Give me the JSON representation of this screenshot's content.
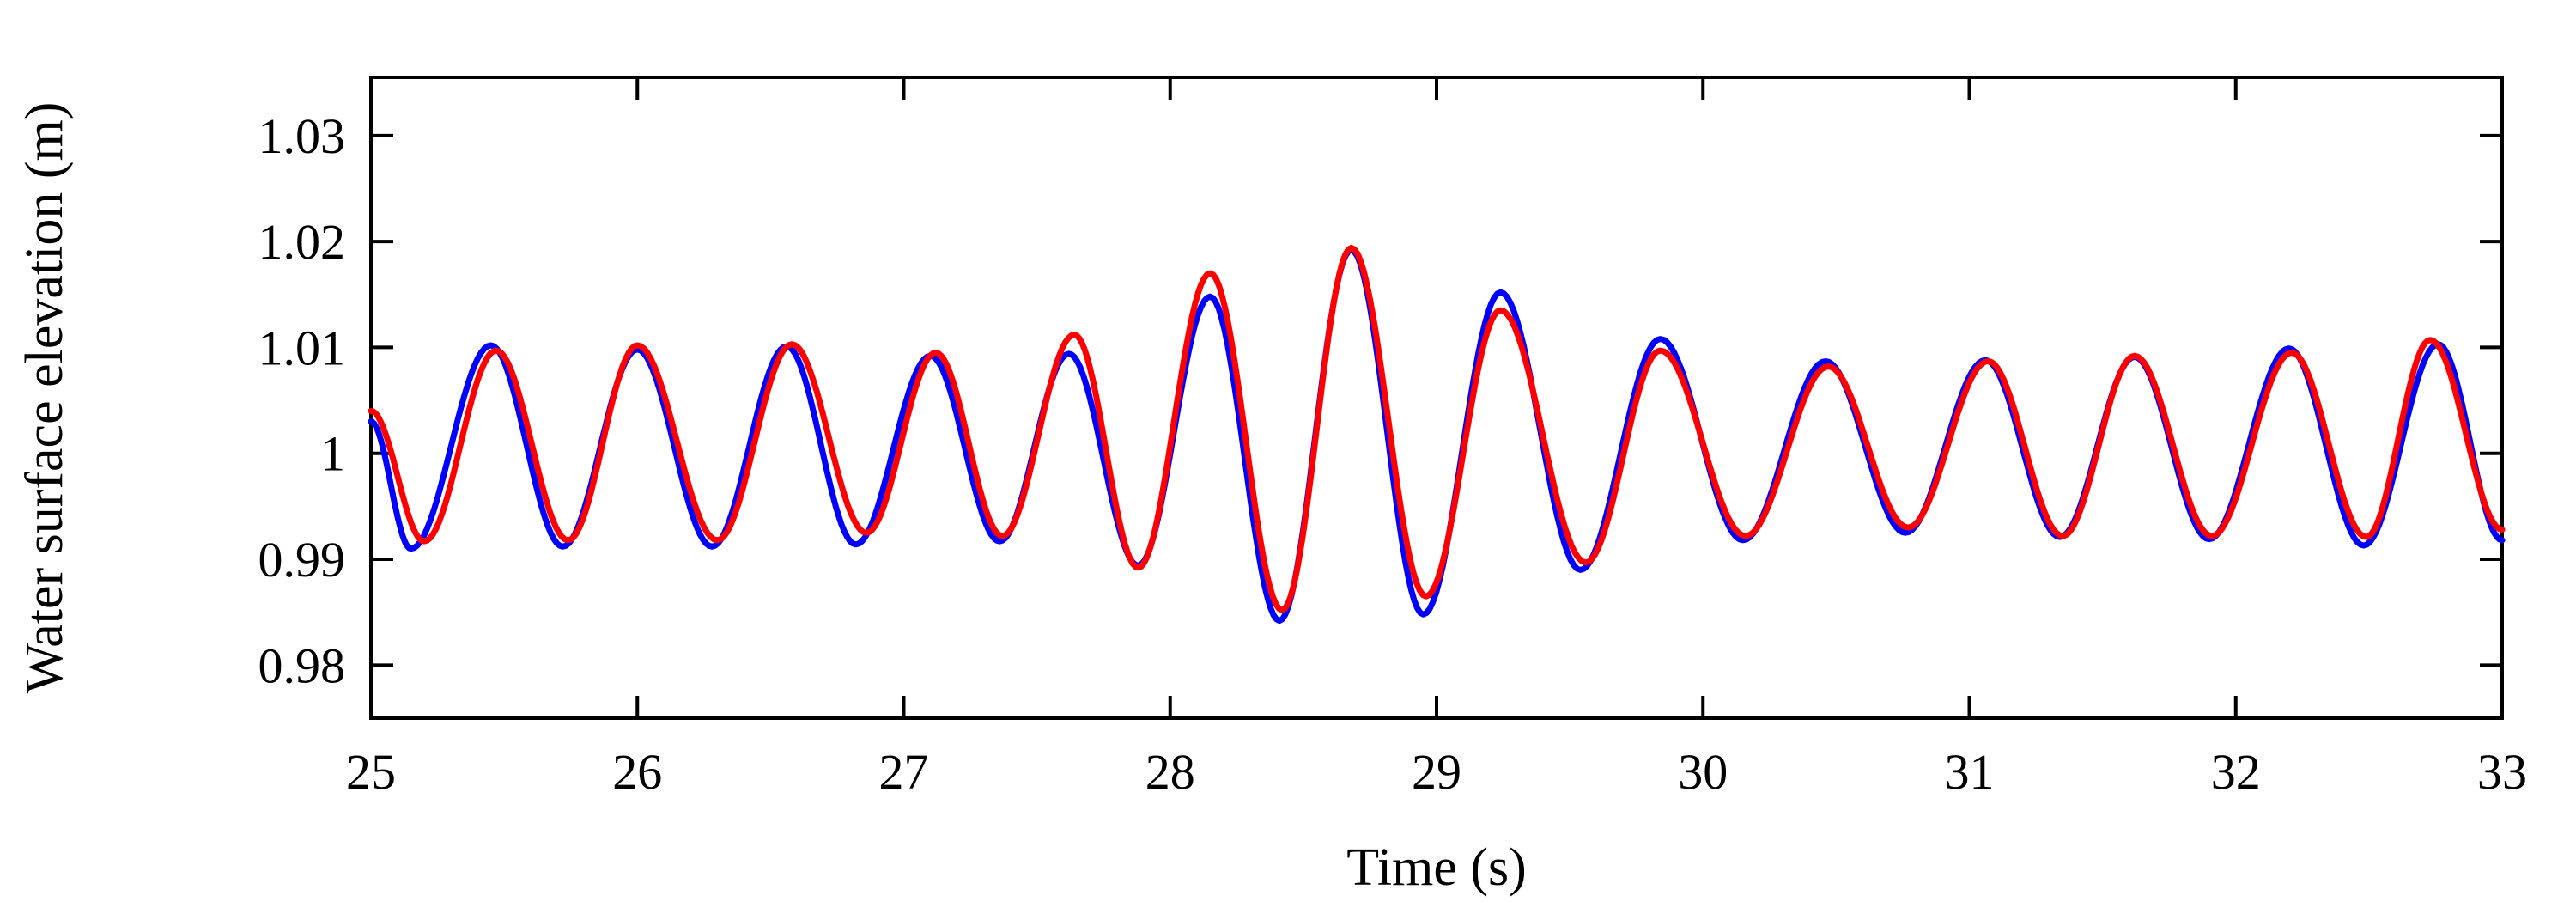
{
  "chart_data": {
    "type": "line",
    "title": "",
    "xlabel": "Time (s)",
    "ylabel": "Water surface elevation (m)",
    "xlim": [
      25,
      33
    ],
    "ylim": [
      0.975,
      1.0355
    ],
    "x_ticks": [
      25,
      26,
      27,
      28,
      29,
      30,
      31,
      32,
      33
    ],
    "y_ticks": [
      0.98,
      0.99,
      1.0,
      1.01,
      1.02,
      1.03
    ],
    "x_tick_labels": [
      "25",
      "26",
      "27",
      "28",
      "29",
      "30",
      "31",
      "32",
      "33"
    ],
    "y_tick_labels": [
      "0.98",
      "0.99",
      "1",
      "1.01",
      "1.02",
      "1.03"
    ],
    "grid": false,
    "legend": "none",
    "series": [
      {
        "color": "#0000ff",
        "extrema": [
          [
            25.0,
            1.003
          ],
          [
            25.15,
            0.991
          ],
          [
            25.45,
            1.0102
          ],
          [
            25.72,
            0.9912
          ],
          [
            26.0,
            1.0098
          ],
          [
            26.28,
            0.9912
          ],
          [
            26.56,
            1.0101
          ],
          [
            26.82,
            0.9914
          ],
          [
            27.1,
            1.0092
          ],
          [
            27.36,
            0.9917
          ],
          [
            27.62,
            1.0094
          ],
          [
            27.88,
            0.9894
          ],
          [
            28.15,
            1.0148
          ],
          [
            28.41,
            0.9842
          ],
          [
            28.68,
            1.0192
          ],
          [
            28.95,
            0.9848
          ],
          [
            29.24,
            1.0152
          ],
          [
            29.54,
            0.989
          ],
          [
            29.84,
            1.0108
          ],
          [
            30.15,
            0.9918
          ],
          [
            30.46,
            1.0087
          ],
          [
            30.76,
            0.9925
          ],
          [
            31.06,
            1.0088
          ],
          [
            31.34,
            0.9921
          ],
          [
            31.62,
            1.0091
          ],
          [
            31.9,
            0.9919
          ],
          [
            32.2,
            1.0099
          ],
          [
            32.48,
            0.9913
          ],
          [
            32.76,
            1.0103
          ],
          [
            33.0,
            0.9918
          ]
        ]
      },
      {
        "color": "#ff0000",
        "extrema": [
          [
            25.0,
            1.004
          ],
          [
            25.2,
            0.9917
          ],
          [
            25.47,
            1.0097
          ],
          [
            25.74,
            0.9918
          ],
          [
            26.0,
            1.0102
          ],
          [
            26.3,
            0.9918
          ],
          [
            26.58,
            1.0103
          ],
          [
            26.86,
            0.9925
          ],
          [
            27.12,
            1.0095
          ],
          [
            27.37,
            0.9922
          ],
          [
            27.64,
            1.0112
          ],
          [
            27.88,
            0.9892
          ],
          [
            28.15,
            1.017
          ],
          [
            28.42,
            0.9852
          ],
          [
            28.68,
            1.0194
          ],
          [
            28.96,
            0.9865
          ],
          [
            29.24,
            1.0135
          ],
          [
            29.56,
            0.9897
          ],
          [
            29.84,
            1.0097
          ],
          [
            30.16,
            0.9922
          ],
          [
            30.47,
            1.0082
          ],
          [
            30.77,
            0.993
          ],
          [
            31.07,
            1.0087
          ],
          [
            31.35,
            0.9922
          ],
          [
            31.62,
            1.0092
          ],
          [
            31.91,
            0.9922
          ],
          [
            32.21,
            1.0095
          ],
          [
            32.49,
            0.9921
          ],
          [
            32.73,
            1.0107
          ],
          [
            33.0,
            0.9928
          ]
        ]
      }
    ]
  }
}
